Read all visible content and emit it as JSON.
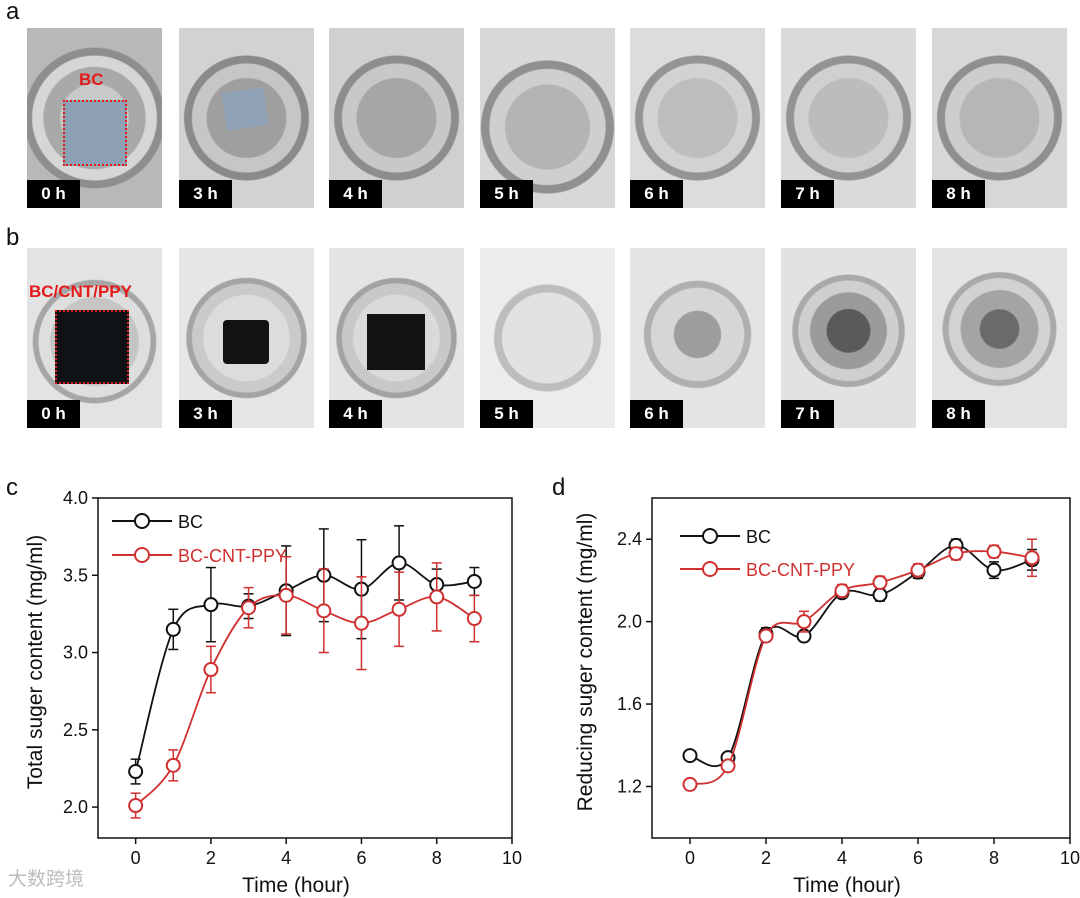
{
  "panel_letters": {
    "a": "a",
    "b": "b",
    "c": "c",
    "d": "d"
  },
  "row_a": {
    "sample_label": "BC",
    "times": [
      "0 h",
      "3 h",
      "4 h",
      "5 h",
      "6 h",
      "7 h",
      "8 h"
    ]
  },
  "row_b": {
    "sample_label": "BC/CNT/PPY",
    "times": [
      "0 h",
      "3 h",
      "4 h",
      "5 h",
      "6 h",
      "7 h",
      "8 h"
    ]
  },
  "watermark": "大数跨境",
  "colors": {
    "bc": "#111111",
    "bc_cnt_ppy": "#d03030",
    "label_red": "#e41a1a"
  },
  "chart_data": [
    {
      "type": "line",
      "xlabel": "Time (hour)",
      "ylabel": "Total suger content (mg/ml)",
      "xlim": [
        -1,
        10
      ],
      "ylim": [
        1.8,
        4.0
      ],
      "x_ticks": [
        0,
        2,
        4,
        6,
        8,
        10
      ],
      "y_ticks": [
        2.0,
        2.5,
        3.0,
        3.5,
        4.0
      ],
      "y_tick_labels": [
        "2.0",
        "2.5",
        "3.0",
        "3.5",
        "4.0"
      ],
      "legend": "top-left",
      "series": [
        {
          "name": "BC",
          "color": "#111111",
          "x": [
            0,
            1,
            2,
            3,
            4,
            5,
            6,
            7,
            8,
            9
          ],
          "y": [
            2.23,
            3.15,
            3.31,
            3.3,
            3.4,
            3.5,
            3.41,
            3.58,
            3.44,
            3.46
          ],
          "err": [
            0.08,
            0.13,
            0.24,
            0.08,
            0.29,
            0.3,
            0.32,
            0.24,
            0.1,
            0.09
          ]
        },
        {
          "name": "BC-CNT-PPY",
          "color": "#d03030",
          "x": [
            0,
            1,
            2,
            3,
            4,
            5,
            6,
            7,
            8,
            9
          ],
          "y": [
            2.01,
            2.27,
            2.89,
            3.29,
            3.37,
            3.27,
            3.19,
            3.28,
            3.36,
            3.22
          ],
          "err": [
            0.08,
            0.1,
            0.15,
            0.13,
            0.25,
            0.27,
            0.3,
            0.24,
            0.22,
            0.15
          ]
        }
      ]
    },
    {
      "type": "line",
      "xlabel": "Time (hour)",
      "ylabel": "Reducing suger content (mg/ml)",
      "xlim": [
        -1,
        10
      ],
      "ylim": [
        0.95,
        2.6
      ],
      "x_ticks": [
        0,
        2,
        4,
        6,
        8,
        10
      ],
      "y_ticks": [
        1.2,
        1.6,
        2.0,
        2.4
      ],
      "y_tick_labels": [
        "1.2",
        "1.6",
        "2.0",
        "2.4"
      ],
      "legend": "top-left",
      "series": [
        {
          "name": "BC",
          "color": "#111111",
          "x": [
            0,
            1,
            2,
            3,
            4,
            5,
            6,
            7,
            8,
            9
          ],
          "y": [
            1.35,
            1.34,
            1.94,
            1.93,
            2.14,
            2.13,
            2.24,
            2.37,
            2.25,
            2.3
          ],
          "err": [
            0.02,
            0.02,
            0.03,
            0.02,
            0.02,
            0.03,
            0.03,
            0.03,
            0.04,
            0.05
          ]
        },
        {
          "name": "BC-CNT-PPY",
          "color": "#d03030",
          "x": [
            0,
            1,
            2,
            3,
            4,
            5,
            6,
            7,
            8,
            9
          ],
          "y": [
            1.21,
            1.3,
            1.93,
            2.0,
            2.15,
            2.19,
            2.25,
            2.33,
            2.34,
            2.31
          ],
          "err": [
            0.02,
            0.02,
            0.02,
            0.05,
            0.03,
            0.03,
            0.03,
            0.03,
            0.03,
            0.09
          ]
        }
      ]
    }
  ]
}
